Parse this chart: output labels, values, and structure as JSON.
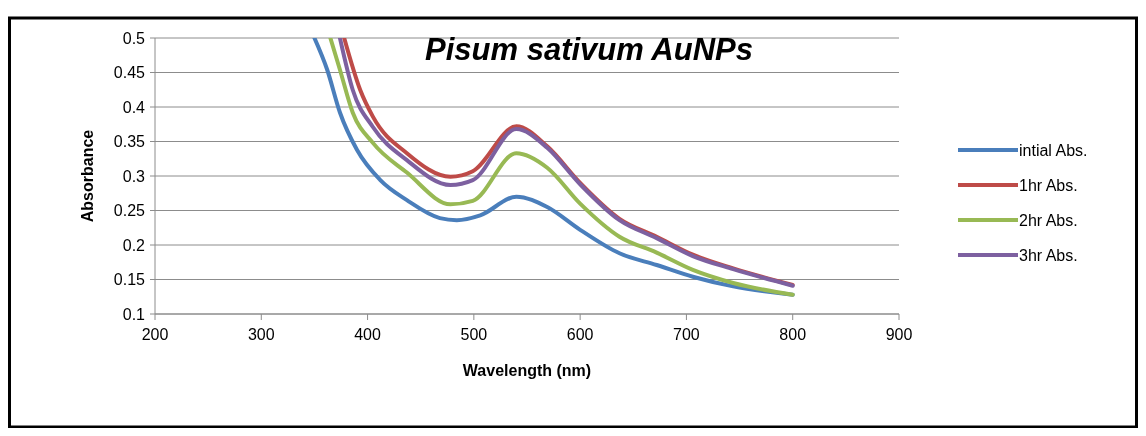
{
  "chart_data": {
    "type": "line",
    "title": "Pisum sativum AuNPs",
    "xlabel": "Wavelength (nm)",
    "ylabel": "Absorbance",
    "xlim": [
      200,
      900
    ],
    "xticks": [
      200,
      300,
      400,
      500,
      600,
      700,
      800,
      900
    ],
    "ylim": [
      0.1,
      0.5
    ],
    "yticks": [
      0.1,
      0.15,
      0.2,
      0.25,
      0.3,
      0.35,
      0.4,
      0.45,
      0.5
    ],
    "grid": "y",
    "legend": "right",
    "marker": "none",
    "line_style": "solid",
    "series": [
      {
        "name": "intial Abs.",
        "color": "#4a7ebb",
        "x": [
          350,
          362,
          374,
          390,
          412,
          437,
          468,
          484,
          506,
          540,
          569,
          600,
          637,
          672,
          706,
          744,
          800
        ],
        "values": [
          0.5,
          0.454,
          0.392,
          0.338,
          0.294,
          0.265,
          0.239,
          0.236,
          0.243,
          0.27,
          0.255,
          0.222,
          0.188,
          0.171,
          0.154,
          0.14,
          0.128
        ]
      },
      {
        "name": "1hr Abs.",
        "color": "#be4b48",
        "x": [
          378,
          393,
          405,
          437,
          478,
          499,
          540,
          569,
          600,
          637,
          672,
          706,
          744,
          800
        ],
        "values": [
          0.5,
          0.425,
          0.386,
          0.333,
          0.299,
          0.307,
          0.372,
          0.343,
          0.29,
          0.238,
          0.212,
          0.186,
          0.166,
          0.142
        ]
      },
      {
        "name": "2hr Abs.",
        "color": "#98b954",
        "x": [
          365,
          374,
          386,
          405,
          437,
          478,
          499,
          540,
          569,
          600,
          637,
          672,
          706,
          744,
          800
        ],
        "values": [
          0.5,
          0.454,
          0.392,
          0.348,
          0.305,
          0.259,
          0.264,
          0.333,
          0.312,
          0.26,
          0.212,
          0.189,
          0.164,
          0.145,
          0.128
        ]
      },
      {
        "name": "3hr Abs.",
        "color": "#7d60a0",
        "x": [
          374,
          386,
          405,
          437,
          478,
          499,
          540,
          569,
          600,
          637,
          672,
          706,
          744,
          800
        ],
        "values": [
          0.5,
          0.425,
          0.371,
          0.323,
          0.287,
          0.294,
          0.368,
          0.341,
          0.288,
          0.236,
          0.21,
          0.184,
          0.165,
          0.141
        ]
      }
    ]
  }
}
